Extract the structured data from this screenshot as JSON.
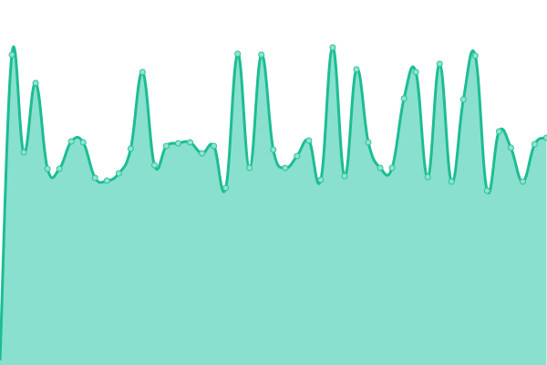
{
  "chart_data": {
    "type": "area",
    "title": "",
    "xlabel": "",
    "ylabel": "",
    "smooth": true,
    "grid": false,
    "axes_visible": false,
    "x": [
      0,
      1,
      2,
      3,
      4,
      5,
      6,
      7,
      8,
      9,
      10,
      11,
      12,
      13,
      14,
      15,
      16,
      17,
      18,
      19,
      20,
      21,
      22,
      23,
      24,
      25,
      26,
      27,
      28,
      29,
      30,
      31,
      32,
      33,
      34,
      35,
      36,
      37,
      38,
      39,
      40,
      41,
      42,
      43,
      44,
      45,
      46
    ],
    "values": [
      5,
      340,
      233,
      309,
      215,
      215,
      245,
      244,
      205,
      202,
      210,
      237,
      321,
      219,
      240,
      243,
      244,
      232,
      240,
      194,
      341,
      216,
      340,
      236,
      216,
      229,
      246,
      203,
      348,
      207,
      324,
      244,
      216,
      216,
      292,
      321,
      206,
      330,
      201,
      291,
      339,
      191,
      256,
      238,
      201,
      242,
      249
    ],
    "xlim": [
      0,
      46
    ],
    "ylim": [
      0,
      400
    ],
    "colors": {
      "line": "#1dbd93",
      "fill": "#89e0cf",
      "marker_fill": "#8fe3cf",
      "marker_stroke": "#2cc39a"
    }
  }
}
